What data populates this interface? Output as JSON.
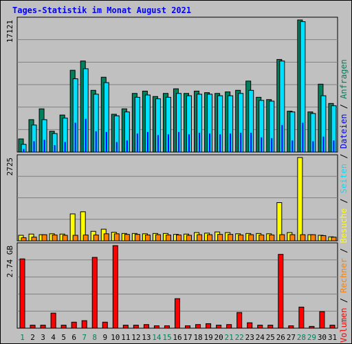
{
  "chart_data": {
    "type": "bar",
    "title": "Tages-Statistik im Monat August 2021",
    "days": [
      "1",
      "2",
      "3",
      "4",
      "5",
      "6",
      "7",
      "8",
      "9",
      "10",
      "11",
      "12",
      "13",
      "14",
      "15",
      "16",
      "17",
      "18",
      "19",
      "20",
      "21",
      "22",
      "23",
      "24",
      "25",
      "26",
      "27",
      "28",
      "29",
      "30",
      "31"
    ],
    "weekend_days": [
      "1",
      "7",
      "8",
      "14",
      "15",
      "21",
      "22",
      "28",
      "29"
    ],
    "panels": [
      {
        "id": "requests",
        "ymax_label": "17121",
        "ymax": 17121,
        "series": [
          {
            "name": "Anfragen",
            "color": "#00805c",
            "values": [
              1700,
              4200,
              5600,
              2700,
              4800,
              10600,
              11800,
              8000,
              9700,
              4900,
              5600,
              7600,
              7900,
              7200,
              7600,
              8200,
              7600,
              7900,
              7700,
              7600,
              7800,
              8000,
              9200,
              7100,
              6800,
              12000,
              5300,
              17121,
              5200,
              8800,
              6300
            ]
          },
          {
            "name": "Seiten",
            "color": "#00e0ff",
            "values": [
              1000,
              3500,
              4200,
              2400,
              4400,
              9500,
              10800,
              7500,
              9000,
              4700,
              5200,
              7100,
              7400,
              6900,
              7100,
              7600,
              7300,
              7500,
              7500,
              7300,
              7300,
              7600,
              8000,
              6700,
              6600,
              11800,
              5200,
              16900,
              5000,
              7300,
              6000
            ]
          },
          {
            "name": "Dateien",
            "color": "#0000ff",
            "values": [
              400,
              1400,
              1600,
              900,
              1300,
              3800,
              4300,
              2700,
              2600,
              1300,
              1500,
              2400,
              2600,
              2200,
              2300,
              2600,
              2300,
              2500,
              2400,
              2300,
              2400,
              2500,
              2500,
              1900,
              1800,
              3500,
              1500,
              3800,
              1400,
              2000,
              1500
            ]
          }
        ]
      },
      {
        "id": "visits",
        "ymax_label": "2725",
        "ymax": 2725,
        "series": [
          {
            "name": "Besuche",
            "color": "#ffff00",
            "values": [
              180,
              220,
              200,
              230,
              220,
              880,
              950,
              310,
              380,
              280,
              240,
              240,
              230,
              240,
              240,
              210,
              220,
              270,
              250,
              290,
              270,
              230,
              240,
              240,
              230,
              1250,
              270,
              2725,
              200,
              180,
              130
            ]
          },
          {
            "name": "Rechner",
            "color": "#ff8000",
            "values": [
              100,
              120,
              200,
              190,
              180,
              180,
              190,
              190,
              230,
              230,
              210,
              210,
              190,
              200,
              190,
              190,
              180,
              200,
              200,
              210,
              210,
              190,
              200,
              190,
              190,
              200,
              200,
              200,
              200,
              170,
              120
            ]
          }
        ]
      },
      {
        "id": "volume",
        "ymax_label": "2.74 GB",
        "ymax": 2.74,
        "series": [
          {
            "name": "Volumen",
            "color": "#ff0000",
            "values": [
              2.3,
              0.1,
              0.1,
              0.5,
              0.1,
              0.2,
              0.25,
              2.35,
              0.2,
              2.74,
              0.1,
              0.1,
              0.12,
              0.08,
              0.08,
              0.98,
              0.08,
              0.12,
              0.15,
              0.1,
              0.12,
              0.52,
              0.18,
              0.1,
              0.1,
              2.45,
              0.08,
              0.7,
              0.06,
              0.55,
              0.1
            ]
          }
        ]
      }
    ],
    "legend": [
      {
        "label": "Volumen",
        "color": "#ff0000"
      },
      {
        "label": "Rechner",
        "color": "#ff8000"
      },
      {
        "label": "Besuche",
        "color": "#ffff00"
      },
      {
        "label": "Seiten",
        "color": "#00e0ff"
      },
      {
        "label": "Dateien",
        "color": "#0000ff"
      },
      {
        "label": "Anfragen",
        "color": "#00805c"
      }
    ],
    "legend_separator": "/",
    "grid": true,
    "legend_placement": "right, vertical"
  }
}
